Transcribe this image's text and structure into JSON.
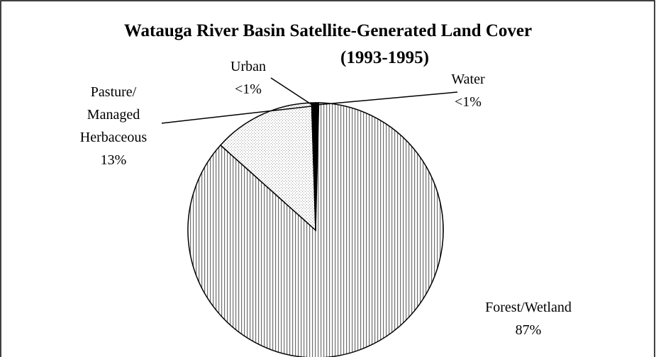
{
  "chart_data": {
    "type": "pie",
    "title": [
      "Watauga River Basin Satellite-Generated Land Cover",
      "(1993-1995)"
    ],
    "categories": [
      "Water",
      "Forest/Wetland",
      "Pasture/ Managed Herbaceous",
      "Urban"
    ],
    "values": [
      0.4,
      87,
      13,
      0.5
    ],
    "value_labels": [
      "<1%",
      "87%",
      "13%",
      "<1%"
    ],
    "colors": [
      "#000000",
      "#707070",
      "#9a9a9a",
      "#000000"
    ]
  }
}
